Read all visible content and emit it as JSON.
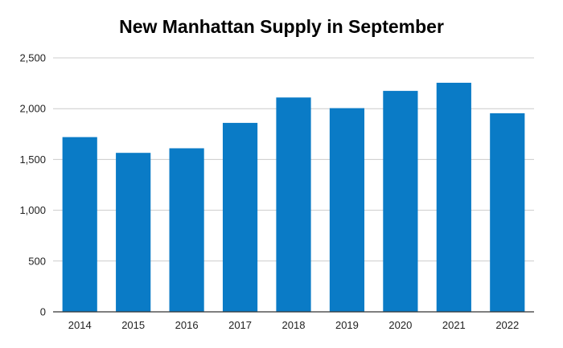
{
  "chart_data": {
    "type": "bar",
    "title": "New Manhattan Supply in September",
    "xlabel": "",
    "ylabel": "",
    "categories": [
      "2014",
      "2015",
      "2016",
      "2017",
      "2018",
      "2019",
      "2020",
      "2021",
      "2022"
    ],
    "values": [
      1720,
      1565,
      1610,
      1860,
      2110,
      2005,
      2175,
      2255,
      1955
    ],
    "ylim": [
      0,
      2500
    ],
    "yticks": [
      0,
      500,
      1000,
      1500,
      2000,
      2500
    ],
    "ytick_labels": [
      "0",
      "500",
      "1,000",
      "1,500",
      "2,000",
      "2,500"
    ],
    "grid": true,
    "legend": "none",
    "colors": {
      "bar": "#0a7bc6",
      "grid": "#cccccc",
      "axis": "#333333"
    }
  }
}
